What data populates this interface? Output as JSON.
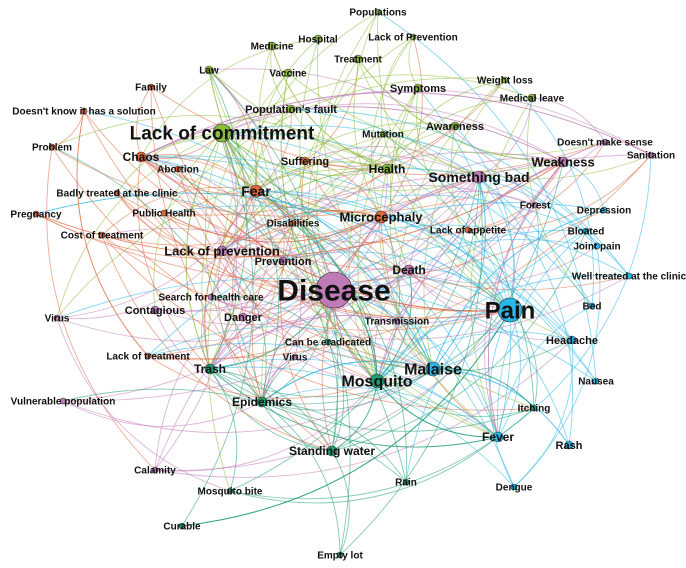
{
  "colors": {
    "orange": "#e0663c",
    "green": "#8cbc3c",
    "purple": "#c07ab8",
    "teal": "#1f9e72",
    "blue": "#29b6e8"
  },
  "nodes": [
    {
      "id": "disease",
      "label": "Disease",
      "group": "purple",
      "size": 6
    },
    {
      "id": "pain",
      "label": "Pain",
      "group": "blue",
      "size": 5
    },
    {
      "id": "lack-of-commitment",
      "label": "Lack of commitment",
      "group": "green",
      "size": 4
    },
    {
      "id": "mosquito",
      "label": "Mosquito",
      "group": "teal",
      "size": 3
    },
    {
      "id": "malaise",
      "label": "Malaise",
      "group": "blue",
      "size": 3
    },
    {
      "id": "fear",
      "label": "Fear",
      "group": "orange",
      "size": 2
    },
    {
      "id": "something-bad",
      "label": "Something bad",
      "group": "purple",
      "size": 2
    },
    {
      "id": "microcephaly",
      "label": "Microcephaly",
      "group": "orange",
      "size": 2
    },
    {
      "id": "lack-of-prevention",
      "label": "Lack of prevention",
      "group": "purple",
      "size": 2
    },
    {
      "id": "weakness",
      "label": "Weakness",
      "group": "purple",
      "size": 2
    },
    {
      "id": "standing-water",
      "label": "Standing water",
      "group": "teal",
      "size": 2
    },
    {
      "id": "chaos",
      "label": "Chaos",
      "group": "orange",
      "size": 2
    },
    {
      "id": "health",
      "label": "Health",
      "group": "green",
      "size": 2
    },
    {
      "id": "death",
      "label": "Death",
      "group": "purple",
      "size": 2
    },
    {
      "id": "epidemics",
      "label": "Epidemics",
      "group": "teal",
      "size": 2
    },
    {
      "id": "trash",
      "label": "Trash",
      "group": "teal",
      "size": 2
    },
    {
      "id": "fever",
      "label": "Fever",
      "group": "blue",
      "size": 2
    },
    {
      "id": "symptoms",
      "label": "Symptoms",
      "group": "green",
      "size": 1
    },
    {
      "id": "awareness",
      "label": "Awareness",
      "group": "green",
      "size": 1
    },
    {
      "id": "rash",
      "label": "Rash",
      "group": "blue",
      "size": 1
    },
    {
      "id": "headache",
      "label": "Headache",
      "group": "blue",
      "size": 1
    },
    {
      "id": "contagious",
      "label": "Contagious",
      "group": "purple",
      "size": 1
    },
    {
      "id": "danger",
      "label": "Danger",
      "group": "purple",
      "size": 1
    },
    {
      "id": "suffering",
      "label": "Suffering",
      "group": "orange",
      "size": 1
    },
    {
      "id": "prevention",
      "label": "Prevention",
      "group": "purple",
      "size": 1
    },
    {
      "id": "populations-fault",
      "label": "Population's fault",
      "group": "green",
      "size": 1
    },
    {
      "id": "medicine",
      "label": "Medicine",
      "group": "green",
      "size": 1
    },
    {
      "id": "treatment",
      "label": "Treatment",
      "group": "green",
      "size": 1
    },
    {
      "id": "vaccine",
      "label": "Vaccine",
      "group": "green",
      "size": 1
    },
    {
      "id": "hospital",
      "label": "Hospital",
      "group": "green",
      "size": 1
    },
    {
      "id": "law",
      "label": "Law",
      "group": "green",
      "size": 1
    },
    {
      "id": "populations",
      "label": "Populations",
      "group": "green",
      "size": 1
    },
    {
      "id": "lack-of-prevention-2",
      "label": "Lack of Prevention",
      "group": "green",
      "size": 1
    },
    {
      "id": "weight-loss",
      "label": "Weight loss",
      "group": "green",
      "size": 1
    },
    {
      "id": "medical-leave",
      "label": "Medical leave",
      "group": "green",
      "size": 1
    },
    {
      "id": "mutation",
      "label": "Mutation",
      "group": "green",
      "size": 1
    },
    {
      "id": "family",
      "label": "Family",
      "group": "orange",
      "size": 1
    },
    {
      "id": "doesnt-know",
      "label": "Doesn't know it has a solution",
      "group": "orange",
      "size": 1
    },
    {
      "id": "problem",
      "label": "Problem",
      "group": "orange",
      "size": 1
    },
    {
      "id": "abortion",
      "label": "Abortion",
      "group": "orange",
      "size": 1
    },
    {
      "id": "badly-treated",
      "label": "Badly treated at the clinic",
      "group": "orange",
      "size": 1
    },
    {
      "id": "pregnancy",
      "label": "Pregnancy",
      "group": "orange",
      "size": 1
    },
    {
      "id": "public-health",
      "label": "Public Health",
      "group": "orange",
      "size": 1
    },
    {
      "id": "cost-of-treatment",
      "label": "Cost of treatment",
      "group": "orange",
      "size": 1
    },
    {
      "id": "disabilities",
      "label": "Disabilities",
      "group": "orange",
      "size": 1
    },
    {
      "id": "lack-of-appetite",
      "label": "Lack of appetite",
      "group": "orange",
      "size": 1
    },
    {
      "id": "search-for-health-care",
      "label": "Search for health care",
      "group": "purple",
      "size": 1
    },
    {
      "id": "virus-left",
      "label": "Virus",
      "group": "purple",
      "size": 1
    },
    {
      "id": "lack-of-treatment",
      "label": "Lack of treatment",
      "group": "orange",
      "size": 1
    },
    {
      "id": "vulnerable-population",
      "label": "Vulnerable population",
      "group": "purple",
      "size": 1
    },
    {
      "id": "calamity",
      "label": "Calamity",
      "group": "purple",
      "size": 1
    },
    {
      "id": "mosquito-bite",
      "label": "Mosquito bite",
      "group": "teal",
      "size": 1
    },
    {
      "id": "curable",
      "label": "Curable",
      "group": "teal",
      "size": 1
    },
    {
      "id": "empty-lot",
      "label": "Empty lot",
      "group": "teal",
      "size": 1
    },
    {
      "id": "rain",
      "label": "Rain",
      "group": "teal",
      "size": 1
    },
    {
      "id": "dengue",
      "label": "Dengue",
      "group": "blue",
      "size": 1
    },
    {
      "id": "itching",
      "label": "Itching",
      "group": "teal",
      "size": 1
    },
    {
      "id": "nausea",
      "label": "Nausea",
      "group": "blue",
      "size": 1
    },
    {
      "id": "bed",
      "label": "Bed",
      "group": "blue",
      "size": 1
    },
    {
      "id": "well-treated",
      "label": "Well treated at the clinic",
      "group": "blue",
      "size": 1
    },
    {
      "id": "joint-pain",
      "label": "Joint pain",
      "group": "blue",
      "size": 1
    },
    {
      "id": "bloated",
      "label": "Bloated",
      "group": "blue",
      "size": 1
    },
    {
      "id": "depression",
      "label": "Depression",
      "group": "blue",
      "size": 1
    },
    {
      "id": "forest",
      "label": "Forest",
      "group": "purple",
      "size": 1
    },
    {
      "id": "doesnt-make-sense",
      "label": "Doesn't make sense",
      "group": "purple",
      "size": 1
    },
    {
      "id": "sanitation",
      "label": "Sanitation",
      "group": "purple",
      "size": 1
    },
    {
      "id": "transmission",
      "label": "Transmission",
      "group": "purple",
      "size": 1
    },
    {
      "id": "can-be-eradicated",
      "label": "Can be eradicated",
      "group": "teal",
      "size": 1
    },
    {
      "id": "virus-center",
      "label": "Virus",
      "group": "purple",
      "size": 1
    }
  ]
}
